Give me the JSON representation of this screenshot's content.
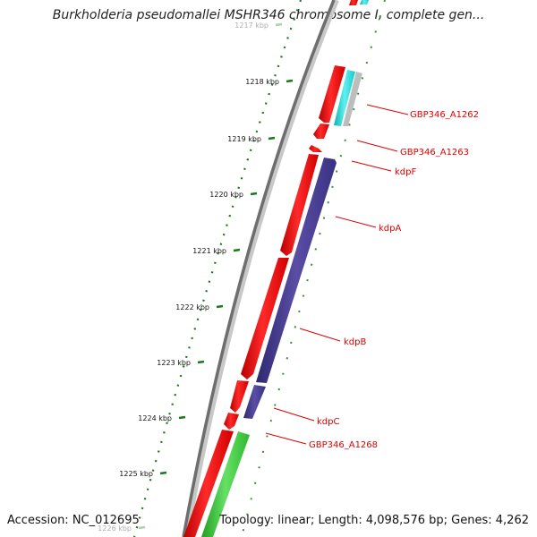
{
  "title": "Burkholderia pseudomallei MSHR346 chromosome I, complete gen...",
  "accession": "Accession: NC_012695",
  "summary": "Topology: linear; Length: 4,098,576 bp; Genes: 4,262",
  "ticks": [
    {
      "label": "1217 kbp",
      "faded": true
    },
    {
      "label": "1218 kbp"
    },
    {
      "label": "1219 kbp"
    },
    {
      "label": "1220 kbp"
    },
    {
      "label": "1221 kbp"
    },
    {
      "label": "1222 kbp"
    },
    {
      "label": "1223 kbp"
    },
    {
      "label": "1224 kbp"
    },
    {
      "label": "1225 kbp"
    },
    {
      "label": "1226 kbp",
      "faded": true
    }
  ],
  "genes": [
    {
      "name": "GBP346_A1262"
    },
    {
      "name": "GBP346_A1263"
    },
    {
      "name": "kdpF"
    },
    {
      "name": "kdpA"
    },
    {
      "name": "kdpB"
    },
    {
      "name": "kdpC"
    },
    {
      "name": "GBP346_A1268"
    }
  ],
  "colors": {
    "forward_cds": "#ee0000",
    "reverse_cds": "#4a3d8f",
    "cyan_feature": "#19d4d4",
    "green_feature": "#33cc33",
    "backbone": "#7a7a7a",
    "tick": "#1a7a1a",
    "label_line": "#e00000"
  }
}
